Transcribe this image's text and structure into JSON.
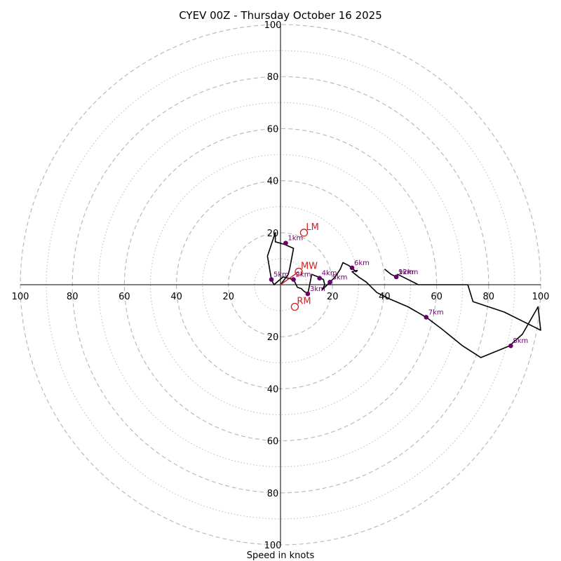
{
  "chart_data": {
    "type": "hodograph",
    "title": "CYEV 00Z - Thursday October 16 2025",
    "xlabel": "Speed in knots",
    "units": "knots",
    "range": 100,
    "ring_dashed": [
      20,
      40,
      60,
      80,
      100
    ],
    "ring_dotted": [
      10,
      30,
      50,
      70,
      90
    ],
    "x_ticks": [
      {
        "value": -100,
        "label": "100"
      },
      {
        "value": -80,
        "label": "80"
      },
      {
        "value": -60,
        "label": "60"
      },
      {
        "value": -40,
        "label": "40"
      },
      {
        "value": -20,
        "label": "20"
      },
      {
        "value": 20,
        "label": "20"
      },
      {
        "value": 40,
        "label": "40"
      },
      {
        "value": 60,
        "label": "60"
      },
      {
        "value": 80,
        "label": "80"
      },
      {
        "value": 100,
        "label": "100"
      }
    ],
    "y_ticks": [
      {
        "value": 100,
        "label": "100"
      },
      {
        "value": 80,
        "label": "80"
      },
      {
        "value": 60,
        "label": "60"
      },
      {
        "value": 40,
        "label": "40"
      },
      {
        "value": 20,
        "label": "20"
      },
      {
        "value": -20,
        "label": "20"
      },
      {
        "value": -40,
        "label": "40"
      },
      {
        "value": -60,
        "label": "60"
      },
      {
        "value": -80,
        "label": "80"
      },
      {
        "value": -100,
        "label": "100"
      }
    ],
    "trace": [
      [
        0,
        0
      ],
      [
        3,
        4
      ],
      [
        3.5,
        6
      ],
      [
        5,
        14
      ],
      [
        1.5,
        15.5
      ],
      [
        -2,
        16.5
      ],
      [
        -2,
        20
      ],
      [
        -5,
        11
      ],
      [
        -3.5,
        2
      ],
      [
        -2.5,
        0
      ],
      [
        1,
        3
      ],
      [
        5,
        2
      ],
      [
        6,
        0
      ],
      [
        6.5,
        -1
      ],
      [
        8,
        -1.5
      ],
      [
        9,
        -2.5
      ],
      [
        10.5,
        -3.5
      ],
      [
        12,
        4
      ],
      [
        14.5,
        3
      ],
      [
        16.5,
        2
      ],
      [
        17,
        0
      ],
      [
        16,
        -2
      ],
      [
        18,
        0
      ],
      [
        19,
        1
      ],
      [
        19.5,
        1.5
      ],
      [
        21,
        3
      ],
      [
        23,
        6
      ],
      [
        24,
        8.5
      ],
      [
        26,
        7.5
      ],
      [
        27.5,
        6.5
      ],
      [
        29,
        5
      ],
      [
        29.5,
        5.5
      ],
      [
        27.5,
        5
      ],
      [
        30,
        3
      ],
      [
        33,
        1
      ],
      [
        37,
        -3
      ],
      [
        42,
        -5.5
      ],
      [
        49,
        -8.5
      ],
      [
        56,
        -12.5
      ],
      [
        62,
        -17
      ],
      [
        70,
        -23.5
      ],
      [
        77,
        -28
      ],
      [
        88,
        -23.5
      ],
      [
        93,
        -19
      ],
      [
        99,
        -8.5
      ],
      [
        100,
        -17.5
      ],
      [
        86,
        -10.5
      ],
      [
        74,
        -6.5
      ],
      [
        72,
        0
      ],
      [
        62,
        0
      ],
      [
        53,
        0
      ],
      [
        45,
        4
      ],
      [
        44.5,
        3
      ],
      [
        42.5,
        4
      ],
      [
        40,
        6
      ]
    ],
    "height_markers": [
      {
        "label": "1km",
        "u": 2,
        "v": 16
      },
      {
        "label": "2km",
        "u": 5,
        "v": 2
      },
      {
        "label": "3km",
        "u": 10.5,
        "v": -3.5
      },
      {
        "label": "4km",
        "u": 15,
        "v": 2.5
      },
      {
        "label": "5km",
        "u": 19,
        "v": 1
      },
      {
        "label": "6km",
        "u": 27.5,
        "v": 6.5
      },
      {
        "label": "7km",
        "u": 56,
        "v": -12.5
      },
      {
        "label": "8km",
        "u": 88.5,
        "v": -23.5
      },
      {
        "label": "9km",
        "u": 44.5,
        "v": 3
      },
      {
        "label": "5km",
        "u": -3.5,
        "v": 2
      },
      {
        "label": "12km",
        "u": 44.5,
        "v": 3
      }
    ],
    "motions": [
      {
        "label": "LM",
        "u": 9,
        "v": 20
      },
      {
        "label": "MW",
        "u": 7,
        "v": 5
      },
      {
        "label": "RM",
        "u": 5.5,
        "v": -8.5
      }
    ],
    "colors": {
      "trace": "#000000",
      "markers": "#6a006a",
      "motions": "#cc2222",
      "rings": "#bbbbbb",
      "axes": "#000000"
    }
  }
}
